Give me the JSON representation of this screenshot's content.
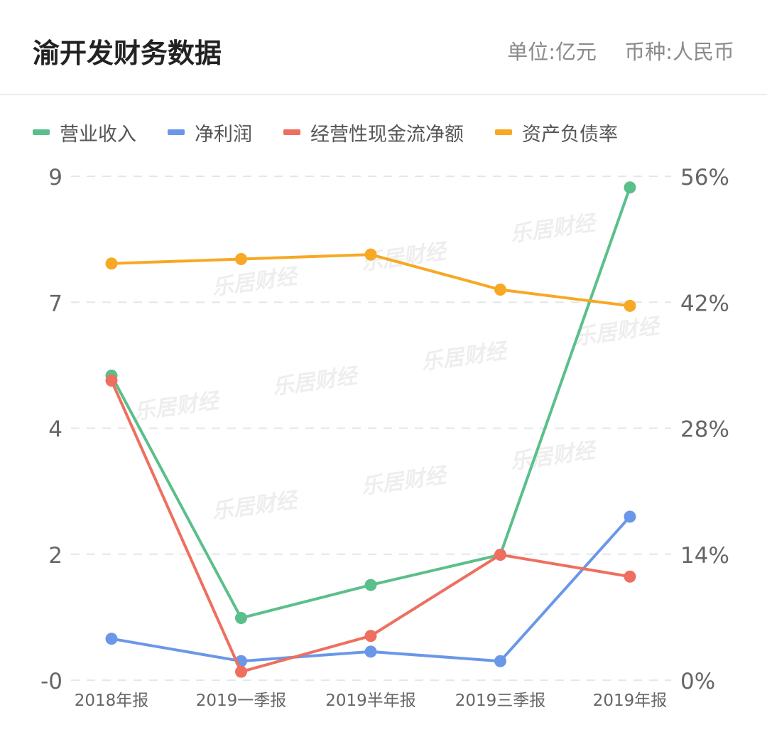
{
  "header": {
    "title": "渝开发财务数据",
    "unit": "单位:亿元",
    "currency": "币种:人民币"
  },
  "watermark": "乐居财经",
  "chart_data": {
    "type": "line",
    "categories": [
      "2018年报",
      "2019一季报",
      "2019半年报",
      "2019三季报",
      "2019年报"
    ],
    "y_left": {
      "ticks": [
        "-0",
        "2",
        "4",
        "7",
        "9"
      ],
      "ylim": [
        0,
        9
      ]
    },
    "y_right": {
      "ticks": [
        "0%",
        "14%",
        "28%",
        "42%",
        "56%"
      ],
      "ylim": [
        0,
        56
      ]
    },
    "grid": true,
    "legend_position": "top-left",
    "series": [
      {
        "name": "营业收入",
        "axis": "left",
        "color": "#5bbf8b",
        "values": [
          5.44,
          1.11,
          1.7,
          2.24,
          8.8
        ]
      },
      {
        "name": "净利润",
        "axis": "left",
        "color": "#6a97e8",
        "values": [
          0.74,
          0.34,
          0.51,
          0.34,
          2.92
        ]
      },
      {
        "name": "经营性现金流净额",
        "axis": "left",
        "color": "#ee6f5f",
        "values": [
          5.35,
          0.15,
          0.79,
          2.24,
          1.85
        ]
      },
      {
        "name": "资产负债率",
        "axis": "right",
        "color": "#f7a824",
        "values": [
          46.3,
          46.8,
          47.3,
          43.4,
          41.6
        ]
      }
    ]
  }
}
